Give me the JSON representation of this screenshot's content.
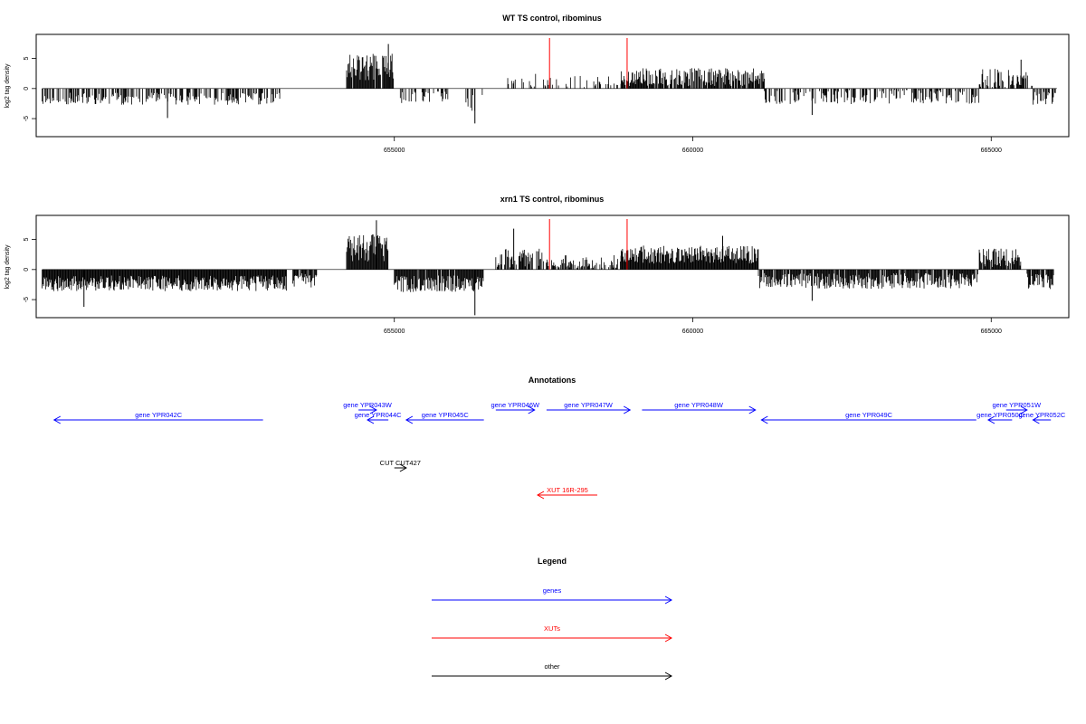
{
  "chart_data": [
    {
      "type": "bar",
      "title": "WT TS control, ribominus",
      "ylabel": "log2 tag density",
      "xlabel": "",
      "ylim": [
        -8,
        9
      ],
      "xlim": [
        649000,
        666300
      ],
      "xticks": [
        655000,
        660000,
        665000
      ],
      "yticks": [
        -5,
        0,
        5
      ],
      "marker_lines": [
        657600,
        658900
      ],
      "regions": [
        {
          "start": 649100,
          "end": 653100,
          "mean": -1.7,
          "spread": 1.0,
          "density": 0.55,
          "seed": 11
        },
        {
          "start": 654200,
          "end": 655000,
          "mean": 3.6,
          "spread": 2.2,
          "density": 0.95,
          "seed": 12
        },
        {
          "start": 655100,
          "end": 655900,
          "mean": -1.5,
          "spread": 1.0,
          "density": 0.45,
          "seed": 13
        },
        {
          "start": 656200,
          "end": 656500,
          "mean": -2.5,
          "spread": 2.0,
          "density": 0.25,
          "seed": 14
        },
        {
          "start": 656900,
          "end": 657400,
          "mean": 1.4,
          "spread": 1.2,
          "density": 0.3,
          "seed": 15
        },
        {
          "start": 657500,
          "end": 658800,
          "mean": 0.9,
          "spread": 1.3,
          "density": 0.28,
          "seed": 16
        },
        {
          "start": 658800,
          "end": 661200,
          "mean": 1.9,
          "spread": 1.5,
          "density": 0.85,
          "seed": 17
        },
        {
          "start": 661200,
          "end": 664800,
          "mean": -1.4,
          "spread": 1.2,
          "density": 0.5,
          "seed": 18
        },
        {
          "start": 664800,
          "end": 665700,
          "mean": 1.5,
          "spread": 1.8,
          "density": 0.6,
          "seed": 19
        },
        {
          "start": 665700,
          "end": 666100,
          "mean": -1.7,
          "spread": 1.2,
          "density": 0.7,
          "seed": 20
        }
      ],
      "spikes": [
        {
          "x": 654900,
          "y": 7.4
        },
        {
          "x": 656350,
          "y": -5.8
        },
        {
          "x": 662000,
          "y": -4.4
        },
        {
          "x": 665500,
          "y": 4.8
        },
        {
          "x": 651200,
          "y": -4.9
        }
      ]
    },
    {
      "type": "bar",
      "title": "xrn1 TS control, ribominus",
      "ylabel": "log2 tag density",
      "xlabel": "",
      "ylim": [
        -8,
        9
      ],
      "xlim": [
        649000,
        666300
      ],
      "xticks": [
        655000,
        660000,
        665000
      ],
      "yticks": [
        -5,
        0,
        5
      ],
      "marker_lines": [
        657600,
        658900
      ],
      "regions": [
        {
          "start": 649100,
          "end": 653200,
          "mean": -2.3,
          "spread": 1.3,
          "density": 1.0,
          "seed": 21
        },
        {
          "start": 653300,
          "end": 653700,
          "mean": -1.8,
          "spread": 1.2,
          "density": 0.9,
          "seed": 22
        },
        {
          "start": 654200,
          "end": 654900,
          "mean": 3.6,
          "spread": 2.4,
          "density": 1.0,
          "seed": 23
        },
        {
          "start": 655000,
          "end": 656500,
          "mean": -2.4,
          "spread": 1.4,
          "density": 0.95,
          "seed": 24
        },
        {
          "start": 656700,
          "end": 657500,
          "mean": 1.9,
          "spread": 1.6,
          "density": 0.75,
          "seed": 25
        },
        {
          "start": 657500,
          "end": 658800,
          "mean": 1.0,
          "spread": 1.4,
          "density": 0.6,
          "seed": 26
        },
        {
          "start": 658800,
          "end": 661100,
          "mean": 2.5,
          "spread": 1.5,
          "density": 1.0,
          "seed": 27
        },
        {
          "start": 661100,
          "end": 664800,
          "mean": -1.9,
          "spread": 1.3,
          "density": 0.9,
          "seed": 28
        },
        {
          "start": 664800,
          "end": 665500,
          "mean": 2.0,
          "spread": 1.6,
          "density": 0.95,
          "seed": 29
        },
        {
          "start": 665600,
          "end": 666050,
          "mean": -2.0,
          "spread": 1.3,
          "density": 0.9,
          "seed": 30
        }
      ],
      "spikes": [
        {
          "x": 654700,
          "y": 8.2
        },
        {
          "x": 656350,
          "y": -7.6
        },
        {
          "x": 649800,
          "y": -6.2
        },
        {
          "x": 662000,
          "y": -5.2
        },
        {
          "x": 657000,
          "y": 6.8
        },
        {
          "x": 660500,
          "y": 5.6
        }
      ]
    }
  ],
  "annotations": {
    "title": "Annotations",
    "features": [
      {
        "label": "gene YPR042C",
        "start": 652800,
        "end": 649300,
        "row": 1,
        "color": "#0000ff"
      },
      {
        "label": "gene YPR043W",
        "start": 654400,
        "end": 654700,
        "row": 0,
        "color": "#0000ff"
      },
      {
        "label": "gene YPR044C",
        "start": 654900,
        "end": 654550,
        "row": 1,
        "color": "#0000ff"
      },
      {
        "label": "gene YPR045C",
        "start": 656500,
        "end": 655200,
        "row": 1,
        "color": "#0000ff"
      },
      {
        "label": "gene YPR046W",
        "start": 656700,
        "end": 657350,
        "row": 0,
        "color": "#0000ff"
      },
      {
        "label": "gene YPR047W",
        "start": 657550,
        "end": 658950,
        "row": 0,
        "color": "#0000ff"
      },
      {
        "label": "gene YPR048W",
        "start": 659150,
        "end": 661050,
        "row": 0,
        "color": "#0000ff"
      },
      {
        "label": "gene YPR049C",
        "start": 664750,
        "end": 661150,
        "row": 1,
        "color": "#0000ff"
      },
      {
        "label": "gene YPR051W",
        "start": 665250,
        "end": 665600,
        "row": 0,
        "color": "#0000ff"
      },
      {
        "label": "gene YPR050C",
        "start": 665350,
        "end": 664950,
        "row": 1,
        "color": "#0000ff"
      },
      {
        "label": "gene YPR052C",
        "start": 666000,
        "end": 665700,
        "row": 1,
        "color": "#0000ff"
      },
      {
        "label": "CUT CUT427",
        "start": 655000,
        "end": 655200,
        "row": 2,
        "color": "#000000"
      },
      {
        "label": "XUT 16R-295",
        "start": 658400,
        "end": 657400,
        "row": 3,
        "color": "#ff0000"
      }
    ]
  },
  "legend": {
    "title": "Legend",
    "items": [
      {
        "label": "genes",
        "color": "#0000ff"
      },
      {
        "label": "XUTs",
        "color": "#ff0000"
      },
      {
        "label": "other",
        "color": "#000000"
      }
    ]
  }
}
